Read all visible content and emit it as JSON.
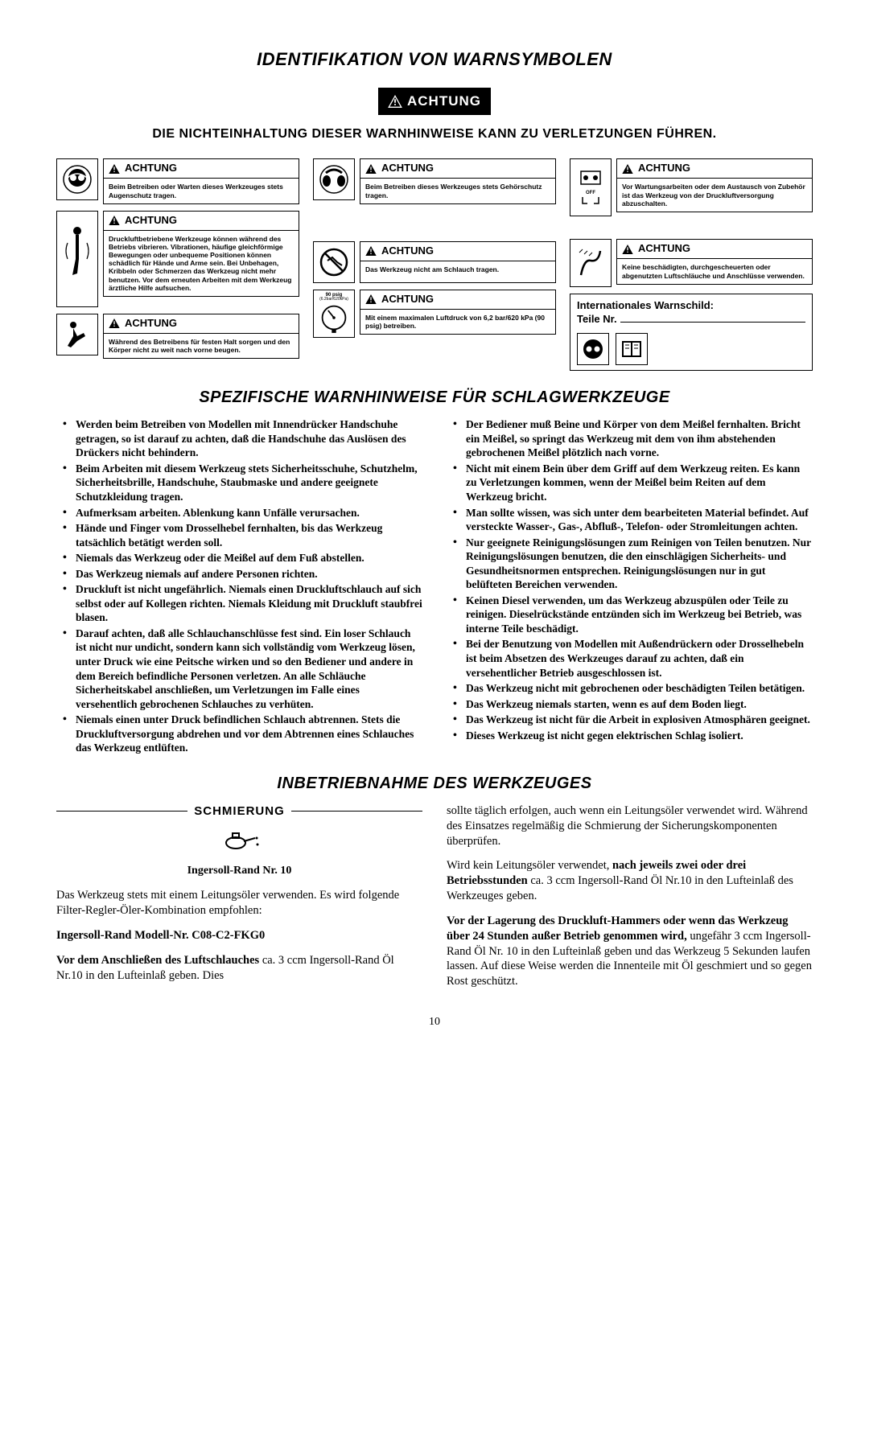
{
  "title_main": "IDENTIFIKATION VON WARNSYMBOLEN",
  "achtung_label": "ACHTUNG",
  "subheading1": "DIE NICHTEINHALTUNG DIESER WARNHINWEISE KANN ZU VERLETZUNGEN FÜHREN.",
  "warn": {
    "eye": "Beim Betreiben oder Warten dieses Werkzeuges stets Augenschutz tragen.",
    "ear": "Beim Betreiben dieses Werkzeuges stets Gehörschutz tragen.",
    "air": "Vor Wartungsarbeiten oder dem Austausch von Zubehör ist das Werkzeug von der Druckluftversorgung abzuschalten.",
    "vib": "Druckluftbetriebene Werkzeuge können während des Betriebs vibrieren. Vibrationen, häufige gleichförmige Bewegungen oder unbequeme Positionen können schädlich für Hände und Arme sein. Bei Unbehagen, Kribbeln oder Schmerzen das Werkzeug nicht mehr benutzen. Vor dem erneuten Arbeiten mit dem Werkzeug ärztliche Hilfe aufsuchen.",
    "carry": "Das Werkzeug nicht am Schlauch tragen.",
    "hose": "Keine beschädigten, durchgescheuerten oder abgenutzten Luftschläuche und Anschlüsse verwenden.",
    "lean": "Während des Betreibens für festen Halt sorgen und den Körper nicht zu weit nach vorne beugen.",
    "psi": "Mit einem maximalen Luftdruck von 6,2 bar/620 kPa (90 psig) betreiben.",
    "gauge_label": "90 psig",
    "gauge_sub": "(6.2bar/620kPa)"
  },
  "intl_label": "Internationales Warnschild:",
  "intl_parts": "Teile Nr.",
  "section2": "SPEZIFISCHE WARNHINWEISE FÜR SCHLAGWERKZEUGE",
  "bullets_left": [
    "Werden beim Betreiben von Modellen mit Innendrücker Handschuhe getragen, so ist darauf zu achten, daß die Handschuhe das Auslösen des Drückers nicht behindern.",
    "Beim Arbeiten mit diesem Werkzeug stets Sicherheitsschuhe, Schutzhelm, Sicherheitsbrille, Handschuhe, Staubmaske und andere geeignete Schutzkleidung tragen.",
    "Aufmerksam arbeiten. Ablenkung kann Unfälle verursachen.",
    "Hände und Finger vom Drosselhebel fernhalten, bis das Werkzeug tatsächlich betätigt werden soll.",
    "Niemals das Werkzeug oder die Meißel auf dem Fuß abstellen.",
    "Das Werkzeug niemals auf andere Personen richten.",
    "Druckluft ist nicht ungefährlich. Niemals einen Druckluftschlauch auf sich selbst oder auf Kollegen richten. Niemals Kleidung mit Druckluft staubfrei blasen.",
    "Darauf achten, daß alle Schlauchanschlüsse fest sind. Ein loser Schlauch ist nicht nur undicht, sondern kann sich vollständig vom Werkzeug lösen, unter Druck wie eine Peitsche wirken und so den Bediener und andere in dem Bereich befindliche Personen verletzen. An alle Schläuche Sicherheitskabel anschließen, um Verletzungen im Falle eines versehentlich gebrochenen Schlauches zu verhüten.",
    "Niemals einen unter Druck befindlichen Schlauch abtrennen. Stets die Druckluftversorgung abdrehen und vor dem Abtrennen eines Schlauches das Werkzeug entlüften."
  ],
  "bullets_right": [
    "Der Bediener muß Beine und Körper von dem Meißel fernhalten. Bricht ein Meißel, so springt das Werkzeug mit dem von ihm abstehenden gebrochenen Meißel plötzlich nach vorne.",
    "Nicht mit einem Bein über dem Griff auf dem Werkzeug reiten. Es kann zu Verletzungen kommen, wenn der Meißel beim Reiten auf dem Werkzeug bricht.",
    "Man sollte wissen, was sich unter dem bearbeiteten Material befindet. Auf versteckte Wasser-, Gas-, Abfluß-, Telefon- oder Stromleitungen achten.",
    "Nur geeignete Reinigungslösungen zum Reinigen von Teilen benutzen. Nur Reinigungslösungen benutzen, die den einschlägigen Sicherheits- und Gesundheitsnormen entsprechen. Reinigungslösungen nur in gut belüfteten Bereichen verwenden.",
    "Keinen Diesel verwenden, um das Werkzeug abzuspülen oder Teile zu reinigen. Dieselrückstände entzünden sich im Werkzeug bei Betrieb, was interne Teile beschädigt.",
    "Bei der Benutzung von Modellen mit Außendrückern oder Drosselhebeln ist beim Absetzen des Werkzeuges darauf zu achten, daß ein versehentlicher Betrieb ausgeschlossen ist.",
    "Das Werkzeug nicht mit gebrochenen oder beschädigten Teilen betätigen.",
    "Das Werkzeug niemals starten, wenn es auf dem Boden liegt.",
    "Das Werkzeug ist nicht für die Arbeit in explosiven Atmosphären geeignet.",
    "Dieses Werkzeug ist nicht gegen elektrischen Schlag isoliert."
  ],
  "section3": "INBETRIEBNAHME DES WERKZEUGES",
  "schmierung": "SCHMIERUNG",
  "ir_nr": "Ingersoll-Rand Nr. 10",
  "p1": "Das Werkzeug stets mit einem Leitungsöler verwenden. Es wird folgende Filter-Regler-Öler-Kombination empfohlen:",
  "model": "Ingersoll-Rand Modell-Nr. C08-C2-FKG0",
  "p2a": "Vor dem Anschließen des Luftschlauches",
  "p2b": " ca. 3 ccm Ingersoll-Rand Öl Nr.10 in den Lufteinlaß geben. Dies",
  "p3": "sollte täglich erfolgen, auch wenn ein Leitungsöler verwendet wird. Während des Einsatzes regelmäßig die Schmierung der Sicherungskomponenten überprüfen.",
  "p4a": "Wird kein Leitungsöler verwendet, ",
  "p4b": "nach jeweils zwei oder drei Betriebsstunden",
  "p4c": " ca. 3 ccm Ingersoll-Rand Öl Nr.10 in den Lufteinlaß des Werkzeuges geben.",
  "p5a": "Vor der Lagerung des Druckluft-Hammers oder wenn das Werkzeug über 24 Stunden außer Betrieb genommen wird,",
  "p5b": " ungefähr 3 ccm Ingersoll-Rand Öl Nr. 10 in den Lufteinlaß geben und das Werkzeug 5 Sekunden laufen lassen. Auf diese Weise werden die Innenteile mit Öl geschmiert und so gegen Rost geschützt.",
  "pagenum": "10"
}
